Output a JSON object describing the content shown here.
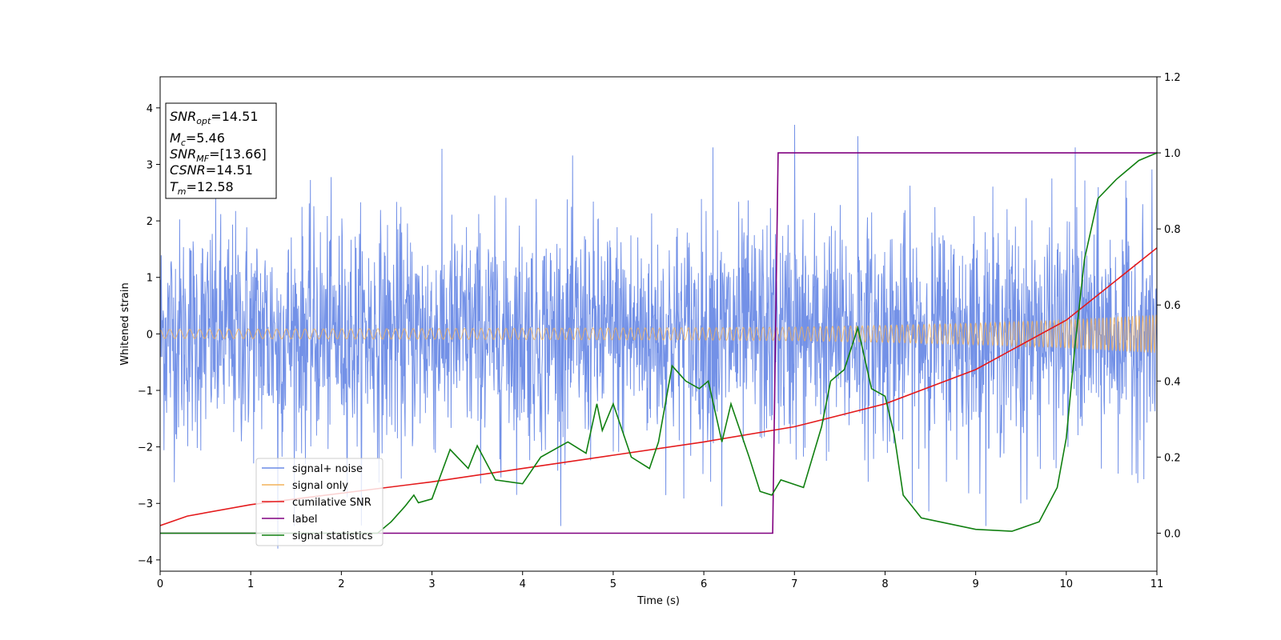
{
  "chart_data": {
    "type": "line",
    "xlabel": "Time (s)",
    "ylabel": "Whitened strain",
    "xlim": [
      0,
      11
    ],
    "ylim": [
      -4.2,
      4.55
    ],
    "y2lim": [
      -0.1,
      1.2
    ],
    "xticks": [
      "0",
      "1",
      "2",
      "3",
      "4",
      "5",
      "6",
      "7",
      "8",
      "9",
      "10",
      "11"
    ],
    "yticks": [
      "−4",
      "−3",
      "−2",
      "−1",
      "0",
      "1",
      "2",
      "3",
      "4"
    ],
    "y2ticks": [
      "0.0",
      "0.2",
      "0.4",
      "0.6",
      "0.8",
      "1.0",
      "1.2"
    ],
    "grid": false,
    "legend_position": "lower-left",
    "legend": [
      "signal+ noise",
      "signal only",
      "cumilative SNR",
      "label",
      "signal statistics"
    ],
    "colors": {
      "signal_noise": "#6b8be6",
      "signal_only": "#f4b25a",
      "cumulative_snr": "#e41a1c",
      "label": "#800080",
      "signal_statistics": "#118011"
    },
    "annotation": {
      "snr_opt": {
        "var": "SNR",
        "sub": "opt",
        "value": "=14.51"
      },
      "mc": {
        "var": "M",
        "sub": "c",
        "value": "=5.46"
      },
      "snr_mf": {
        "var": "SNR",
        "sub": "MF",
        "value": "=[13.66]"
      },
      "csnr": {
        "var": "CSNR",
        "sub": "",
        "value": "=14.51"
      },
      "tm": {
        "var": "T",
        "sub": "m",
        "value": "=12.58"
      }
    },
    "series": [
      {
        "name": "signal+ noise",
        "axis": "left",
        "description": "whitened strain, noise approx. N(0,1), range about -3.8 to 3.7",
        "spikes": [
          [
            7.0,
            3.7
          ],
          [
            7.7,
            3.5
          ],
          [
            6.1,
            3.3
          ],
          [
            10.1,
            3.3
          ],
          [
            1.3,
            -3.8
          ],
          [
            6.2,
            -3.05
          ],
          [
            9.5,
            -3.0
          ]
        ]
      },
      {
        "name": "signal only",
        "axis": "left",
        "description": "chirp envelope amplitude vs time",
        "envelope": [
          [
            0,
            0.08
          ],
          [
            2,
            0.09
          ],
          [
            4,
            0.1
          ],
          [
            6,
            0.11
          ],
          [
            7,
            0.12
          ],
          [
            8,
            0.15
          ],
          [
            9,
            0.19
          ],
          [
            10,
            0.25
          ],
          [
            11,
            0.34
          ]
        ]
      },
      {
        "name": "cumilative SNR",
        "axis": "right",
        "points": [
          [
            0,
            0.02
          ],
          [
            0.3,
            0.045
          ],
          [
            1,
            0.075
          ],
          [
            2,
            0.105
          ],
          [
            3,
            0.135
          ],
          [
            4,
            0.17
          ],
          [
            5,
            0.205
          ],
          [
            6,
            0.24
          ],
          [
            7,
            0.28
          ],
          [
            8,
            0.34
          ],
          [
            9,
            0.43
          ],
          [
            10,
            0.56
          ],
          [
            11,
            0.75
          ]
        ]
      },
      {
        "name": "label",
        "axis": "right",
        "points": [
          [
            0,
            0.0
          ],
          [
            6.76,
            0.0
          ],
          [
            6.82,
            1.0
          ],
          [
            11,
            1.0
          ]
        ]
      },
      {
        "name": "signal statistics",
        "axis": "right",
        "points": [
          [
            0,
            0.0
          ],
          [
            2.4,
            0.0
          ],
          [
            2.55,
            0.03
          ],
          [
            2.7,
            0.07
          ],
          [
            2.8,
            0.1
          ],
          [
            2.85,
            0.08
          ],
          [
            3.0,
            0.09
          ],
          [
            3.2,
            0.22
          ],
          [
            3.4,
            0.17
          ],
          [
            3.5,
            0.23
          ],
          [
            3.7,
            0.14
          ],
          [
            4.0,
            0.13
          ],
          [
            4.2,
            0.2
          ],
          [
            4.5,
            0.24
          ],
          [
            4.7,
            0.21
          ],
          [
            4.82,
            0.34
          ],
          [
            4.88,
            0.27
          ],
          [
            5.0,
            0.34
          ],
          [
            5.2,
            0.2
          ],
          [
            5.4,
            0.17
          ],
          [
            5.5,
            0.24
          ],
          [
            5.65,
            0.44
          ],
          [
            5.8,
            0.4
          ],
          [
            5.95,
            0.38
          ],
          [
            6.05,
            0.4
          ],
          [
            6.2,
            0.24
          ],
          [
            6.3,
            0.34
          ],
          [
            6.5,
            0.2
          ],
          [
            6.62,
            0.11
          ],
          [
            6.75,
            0.1
          ],
          [
            6.85,
            0.14
          ],
          [
            7.1,
            0.12
          ],
          [
            7.3,
            0.28
          ],
          [
            7.4,
            0.4
          ],
          [
            7.55,
            0.43
          ],
          [
            7.7,
            0.54
          ],
          [
            7.85,
            0.38
          ],
          [
            8.0,
            0.36
          ],
          [
            8.1,
            0.26
          ],
          [
            8.2,
            0.1
          ],
          [
            8.4,
            0.04
          ],
          [
            8.6,
            0.03
          ],
          [
            9.0,
            0.01
          ],
          [
            9.4,
            0.005
          ],
          [
            9.7,
            0.03
          ],
          [
            9.9,
            0.12
          ],
          [
            10.0,
            0.25
          ],
          [
            10.1,
            0.5
          ],
          [
            10.2,
            0.72
          ],
          [
            10.35,
            0.88
          ],
          [
            10.55,
            0.93
          ],
          [
            10.8,
            0.98
          ],
          [
            11,
            1.0
          ]
        ]
      }
    ]
  }
}
